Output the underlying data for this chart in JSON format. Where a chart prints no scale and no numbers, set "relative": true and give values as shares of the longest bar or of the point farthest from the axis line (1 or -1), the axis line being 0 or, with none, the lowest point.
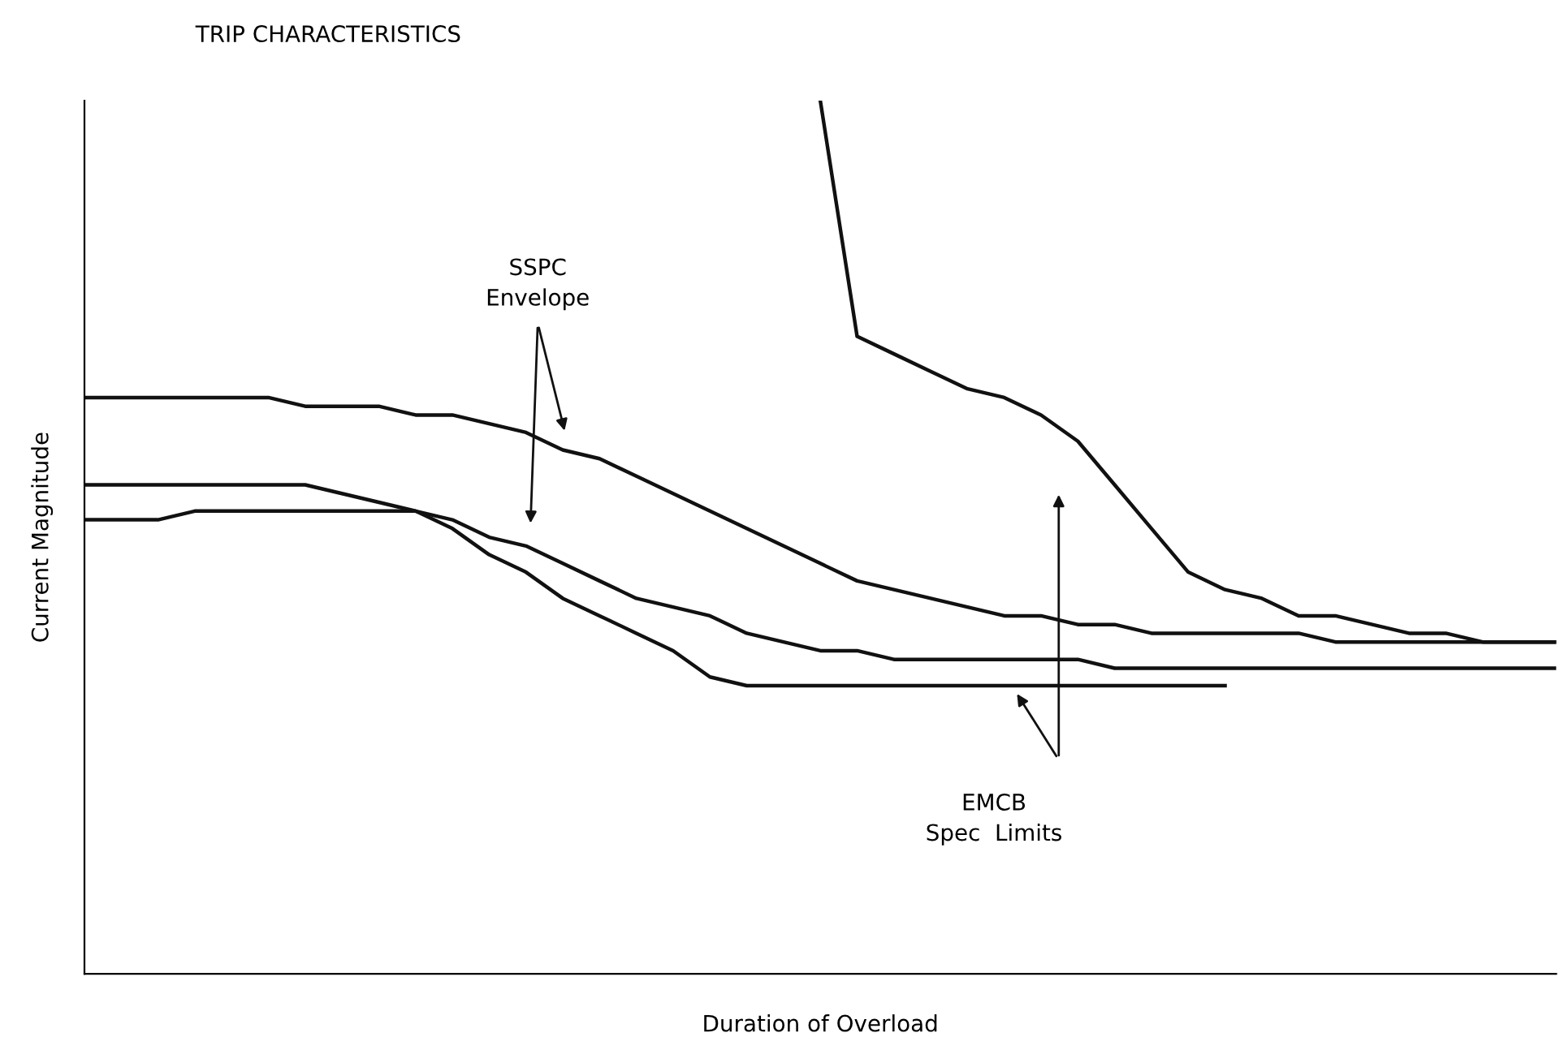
{
  "chart_data": {
    "type": "line",
    "title": "TRIP CHARACTERISTICS",
    "xlabel": "Duration of Overload",
    "ylabel": "Current Magnitude",
    "relative": true,
    "tick_labels": false,
    "categories": [
      null,
      null,
      null,
      null,
      null,
      null,
      null,
      null,
      null,
      null,
      null,
      null,
      null,
      null,
      null,
      null,
      null,
      null,
      null,
      null,
      null,
      null,
      null,
      null,
      null,
      null,
      null,
      null,
      null,
      null,
      null,
      null,
      null,
      null,
      null,
      null,
      null,
      null,
      null,
      null,
      null
    ],
    "series": [
      {
        "color": "#111111",
        "values": [
          0.66,
          0.66,
          0.66,
          0.66,
          0.66,
          0.66,
          0.65,
          0.65,
          0.65,
          0.64,
          0.64,
          0.63,
          0.62,
          0.6,
          0.59,
          0.57,
          0.55,
          0.53,
          0.51,
          0.49,
          0.47,
          0.45,
          0.44,
          0.43,
          0.42,
          0.41,
          0.41,
          0.4,
          0.4,
          0.39,
          0.39,
          0.39,
          0.39,
          0.39,
          0.38,
          0.38,
          0.38,
          0.38,
          0.38,
          0.38,
          0.38
        ]
      },
      {
        "color": "#111111",
        "values": [
          0.52,
          0.52,
          0.52,
          0.53,
          0.53,
          0.53,
          0.53,
          0.53,
          0.53,
          0.53,
          0.52,
          0.5,
          0.49,
          0.47,
          0.45,
          0.43,
          0.42,
          0.41,
          0.39,
          0.38,
          0.37,
          0.37,
          0.36,
          0.36,
          0.36,
          0.36,
          0.36,
          0.36,
          0.35,
          0.35,
          0.35,
          0.35,
          0.35,
          0.35,
          0.35,
          0.35,
          0.35,
          0.35,
          0.35,
          0.35,
          0.35
        ]
      },
      {
        "color": "#111111",
        "values": [
          0.56,
          0.56,
          0.56,
          0.56,
          0.56,
          0.56,
          0.56,
          0.55,
          0.54,
          0.53,
          0.51,
          0.48,
          0.46,
          0.43,
          0.41,
          0.39,
          0.37,
          0.34,
          0.33,
          0.33,
          0.33,
          0.33,
          0.33,
          0.33,
          0.33,
          0.33,
          0.33,
          0.33,
          0.33,
          0.33,
          0.33,
          0.33,
          null,
          null,
          null,
          null,
          null,
          null,
          null,
          null,
          null
        ]
      },
      {
        "color": "#111111",
        "values": [
          null,
          null,
          null,
          null,
          null,
          null,
          null,
          null,
          null,
          null,
          null,
          null,
          null,
          null,
          null,
          null,
          null,
          null,
          null,
          null,
          1.0,
          0.73,
          0.71,
          0.69,
          0.67,
          0.66,
          0.64,
          0.61,
          0.56,
          0.51,
          0.46,
          0.44,
          0.43,
          0.41,
          0.41,
          0.4,
          0.39,
          0.39,
          0.38,
          0.38,
          0.38
        ]
      }
    ],
    "annotations": [
      "SSPC\nEnvelope",
      "EMCB\nSpec  Limits"
    ]
  }
}
